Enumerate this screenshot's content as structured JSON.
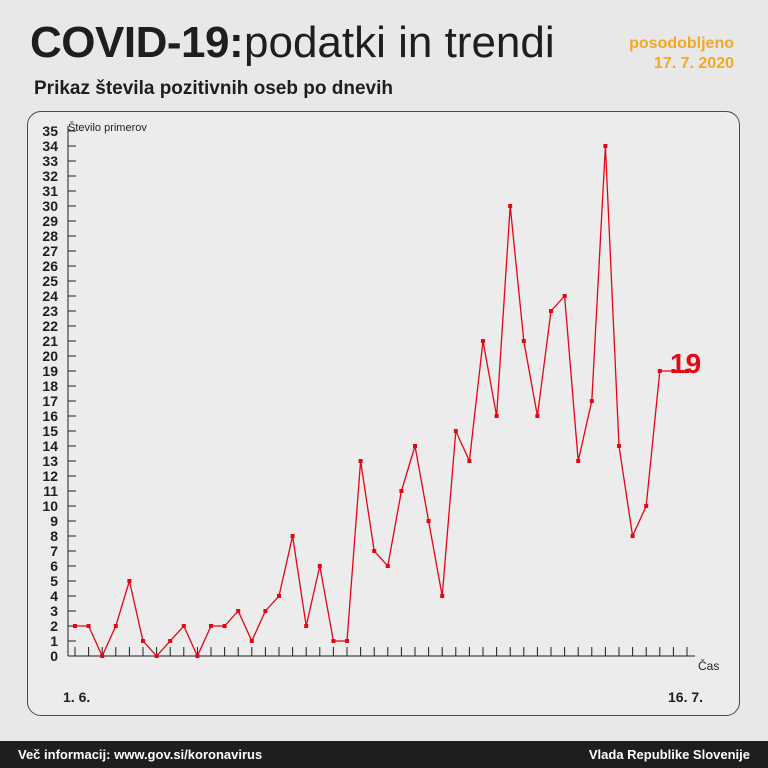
{
  "header": {
    "title_bold": "COVID-19:",
    "title_light": "podatki in trendi",
    "updated_label": "posodobljeno",
    "updated_date": "17. 7. 2020",
    "subtitle": "Prikaz števila pozitivnih oseb po dnevih"
  },
  "chart_data": {
    "type": "line",
    "title": "",
    "ylabel": "Število primerov",
    "xlabel": "Čas",
    "x_start_label": "1. 6.",
    "x_end_label": "16. 7.",
    "ylim": [
      0,
      35
    ],
    "yticks": [
      0,
      1,
      2,
      3,
      4,
      5,
      6,
      7,
      8,
      9,
      10,
      11,
      12,
      13,
      14,
      15,
      16,
      17,
      18,
      19,
      20,
      21,
      22,
      23,
      24,
      25,
      26,
      27,
      28,
      29,
      30,
      31,
      32,
      33,
      34,
      35
    ],
    "series": [
      {
        "color": "#e30613",
        "values": [
          2,
          2,
          0,
          2,
          5,
          1,
          0,
          1,
          2,
          0,
          2,
          2,
          3,
          1,
          3,
          4,
          8,
          2,
          6,
          1,
          1,
          13,
          7,
          6,
          11,
          14,
          9,
          4,
          15,
          13,
          21,
          16,
          30,
          21,
          16,
          23,
          24,
          13,
          17,
          34,
          14,
          8,
          10,
          19,
          19,
          19
        ]
      }
    ],
    "last_value_label": "19",
    "grid": false
  },
  "footer": {
    "more_info": "Več informacij: www.gov.si/koronavirus",
    "source": "Vlada Republike Slovenije"
  }
}
